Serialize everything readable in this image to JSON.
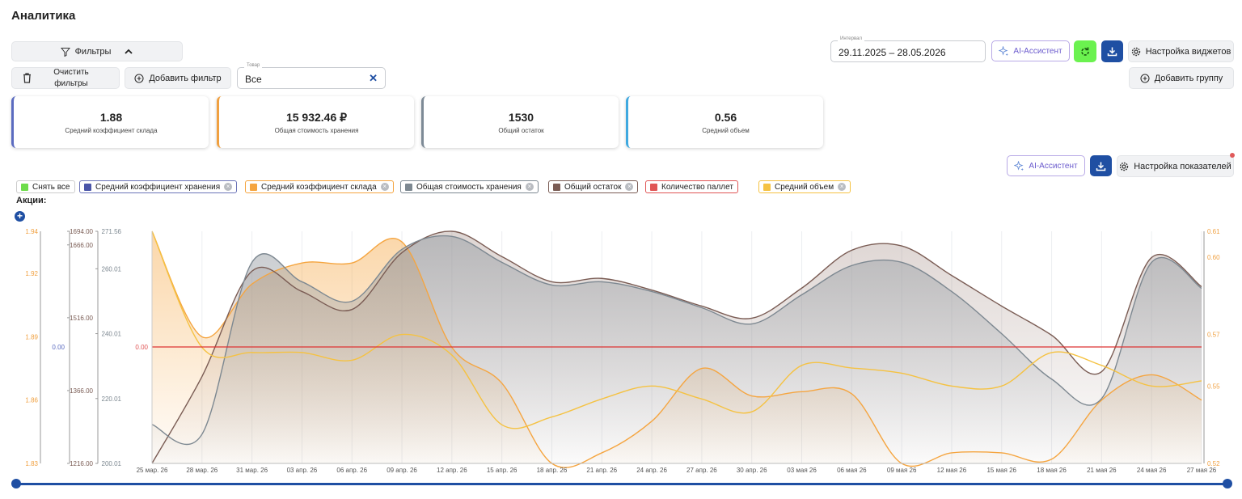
{
  "page": {
    "title": "Аналитика"
  },
  "filters": {
    "toggle_label": "Фильтры",
    "clear_label": "Очистить фильтры",
    "add_filter_label": "Добавить фильтр",
    "product_field": {
      "label": "Товар",
      "value": "Все"
    }
  },
  "toolbar": {
    "interval": {
      "label": "Интервал",
      "value": "29.11.2025 – 28.05.2026"
    },
    "ai_label": "AI-Ассистент",
    "widgets_label": "Настройка виджетов",
    "add_group_label": "Добавить группу"
  },
  "kpis": [
    {
      "value": "1.88",
      "label": "Средний коэффициент склада",
      "color": "#5b6bc0"
    },
    {
      "value": "15 932.46 ₽",
      "label": "Общая стоимость хранения",
      "color": "#f0a040"
    },
    {
      "value": "1530",
      "label": "Общий остаток",
      "color": "#7d8a96"
    },
    {
      "value": "0.56",
      "label": "Средний объем",
      "color": "#3fa9e0"
    }
  ],
  "chart_toolbar": {
    "ai_label": "AI-Ассистент",
    "indicators_label": "Настройка показателей"
  },
  "legend": [
    {
      "label": "Снять все",
      "color": "#6ddc4a",
      "removable": false,
      "border": "#cccccc"
    },
    {
      "label": "Средний коэффициент хранения",
      "color": "#4a55a8",
      "removable": true,
      "border": "#6b74b8"
    },
    {
      "label": "Средний коэффициент склада",
      "color": "#f5a540",
      "removable": true,
      "border": "#f5a540"
    },
    {
      "label": "Общая стоимость хранения",
      "color": "#7d8891",
      "removable": true,
      "border": "#7d8891"
    },
    {
      "label": "Общий остаток",
      "color": "#7a5c54",
      "removable": true,
      "border": "#7a5c54"
    },
    {
      "label": "Количество паллет",
      "color": "#e05555",
      "removable": false,
      "border": "#e05555"
    },
    {
      "label": "Средний объем",
      "color": "#f5c242",
      "removable": true,
      "border": "#f5c242"
    }
  ],
  "promo_label": "Акции:",
  "chart_data": {
    "type": "line",
    "x": [
      "25 мар. 26",
      "28 мар. 26",
      "31 мар. 26",
      "03 апр. 26",
      "06 апр. 26",
      "09 апр. 26",
      "12 апр. 26",
      "15 апр. 26",
      "18 апр. 26",
      "21 апр. 26",
      "24 апр. 26",
      "27 апр. 26",
      "30 апр. 26",
      "03 мая 26",
      "06 мая 26",
      "09 мая 26",
      "12 мая 26",
      "15 мая 26",
      "18 мая 26",
      "21 мая 26",
      "24 мая 26",
      "27 мая 26"
    ],
    "axes": {
      "warehouse_coef": {
        "ticks": [
          "1.83",
          "1.86",
          "1.89",
          "1.92",
          "1.94"
        ],
        "ylim": [
          1.83,
          1.94
        ],
        "color": "#f0a040"
      },
      "storage_coef": {
        "ticks": [
          "0.00"
        ],
        "color": "#5b6bc0"
      },
      "stock": {
        "ticks": [
          "1216.00",
          "1366.00",
          "1516.00",
          "1666.00",
          "1694.00"
        ],
        "ylim": [
          1216,
          1694
        ],
        "color": "#7a5c54"
      },
      "storage_cost": {
        "ticks": [
          "200.01",
          "220.01",
          "240.01",
          "260.01",
          "271.56"
        ],
        "ylim": [
          200.01,
          271.56
        ],
        "color": "#7d8891"
      },
      "pallets": {
        "ticks": [
          "0.00"
        ],
        "color": "#e05555"
      },
      "volume": {
        "ticks": [
          "0.52",
          "0.55",
          "0.57",
          "0.60",
          "0.61"
        ],
        "ylim": [
          0.52,
          0.61
        ],
        "color": "#f0a040"
      }
    },
    "series": [
      {
        "name": "Средний коэффициент хранения",
        "values": [
          0,
          0,
          0,
          0,
          0,
          0,
          0,
          0,
          0,
          0,
          0,
          0,
          0,
          0,
          0,
          0,
          0,
          0,
          0,
          0,
          0,
          0
        ]
      },
      {
        "name": "Средний коэффициент склада",
        "values": [
          1.94,
          1.89,
          1.915,
          1.925,
          1.925,
          1.935,
          1.885,
          1.868,
          1.83,
          1.835,
          1.85,
          1.875,
          1.862,
          1.864,
          1.863,
          1.83,
          1.835,
          1.835,
          1.832,
          1.86,
          1.872,
          1.86
        ]
      },
      {
        "name": "Общая стоимость хранения",
        "values": [
          212,
          209,
          262,
          256,
          250,
          266,
          270,
          262,
          255,
          256,
          253,
          248,
          243,
          252,
          261,
          262,
          253,
          240,
          226,
          220,
          262,
          254
        ]
      },
      {
        "name": "Общий остаток",
        "values": [
          1216,
          1395,
          1612,
          1570,
          1533,
          1650,
          1694,
          1642,
          1590,
          1597,
          1573,
          1540,
          1515,
          1577,
          1655,
          1664,
          1603,
          1540,
          1480,
          1405,
          1640,
          1580
        ]
      },
      {
        "name": "Количество паллет",
        "values": [
          0,
          0,
          0,
          0,
          0,
          0,
          0,
          0,
          0,
          0,
          0,
          0,
          0,
          0,
          0,
          0,
          0,
          0,
          0,
          0,
          0,
          0
        ]
      },
      {
        "name": "Средний объем",
        "values": [
          0.61,
          0.565,
          0.563,
          0.563,
          0.56,
          0.57,
          0.562,
          0.535,
          0.538,
          0.545,
          0.55,
          0.545,
          0.54,
          0.558,
          0.557,
          0.555,
          0.55,
          0.55,
          0.563,
          0.558,
          0.55,
          0.552
        ]
      }
    ]
  }
}
